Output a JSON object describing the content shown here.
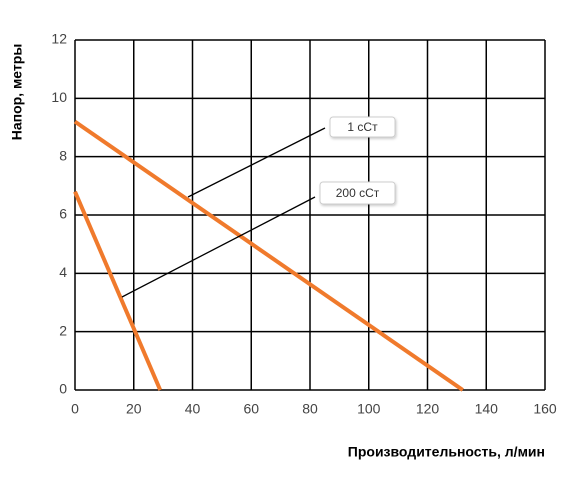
{
  "chart_data": {
    "type": "line",
    "x_label": "Производительность, л/мин",
    "y_label": "Напор, метры",
    "xlim": [
      0,
      160
    ],
    "xticks": [
      0,
      20,
      40,
      60,
      80,
      100,
      120,
      140,
      160
    ],
    "ylim": [
      0,
      12
    ],
    "yticks": [
      0,
      2,
      4,
      6,
      8,
      10,
      12
    ],
    "grid": true,
    "series": [
      {
        "name": "1 сСт",
        "color": "#f07a2c",
        "x": [
          0,
          132
        ],
        "values": [
          9.2,
          0
        ]
      },
      {
        "name": "200 сСт",
        "color": "#f07a2c",
        "x": [
          0,
          29
        ],
        "values": [
          6.8,
          0
        ]
      }
    ]
  }
}
